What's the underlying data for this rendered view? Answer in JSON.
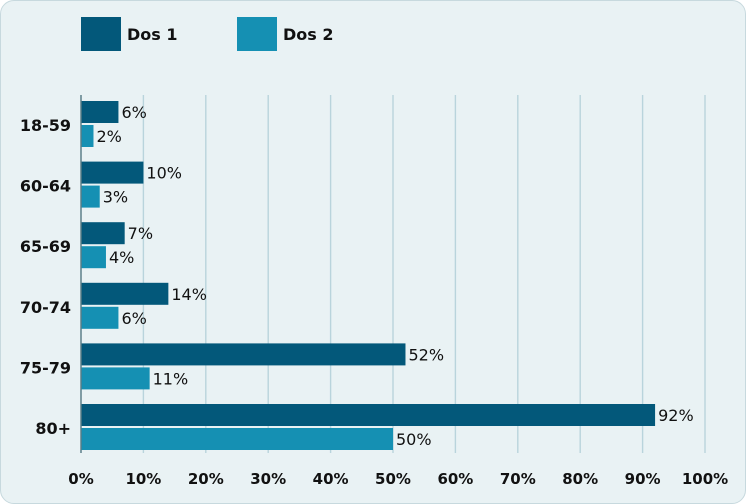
{
  "chart_data": {
    "type": "bar",
    "orientation": "horizontal",
    "categories": [
      "18-59",
      "60-64",
      "65-69",
      "70-74",
      "75-79",
      "80+"
    ],
    "series": [
      {
        "name": "Dos 1",
        "values": [
          6,
          10,
          7,
          14,
          52,
          92
        ],
        "color": "#03587a"
      },
      {
        "name": "Dos 2",
        "values": [
          2,
          3,
          4,
          6,
          11,
          50
        ],
        "color": "#1590b3"
      }
    ],
    "value_labels": [
      [
        "6%",
        "10%",
        "7%",
        "14%",
        "52%",
        "92%"
      ],
      [
        "2%",
        "3%",
        "4%",
        "6%",
        "11%",
        "50%"
      ]
    ],
    "x_ticks": [
      "0%",
      "10%",
      "20%",
      "30%",
      "40%",
      "50%",
      "60%",
      "70%",
      "80%",
      "90%",
      "100%"
    ],
    "xlim": [
      0,
      100
    ],
    "grid": true,
    "legend_position": "top-left",
    "background_color": "#e9f2f4",
    "grid_color": "#b9d4dc"
  }
}
